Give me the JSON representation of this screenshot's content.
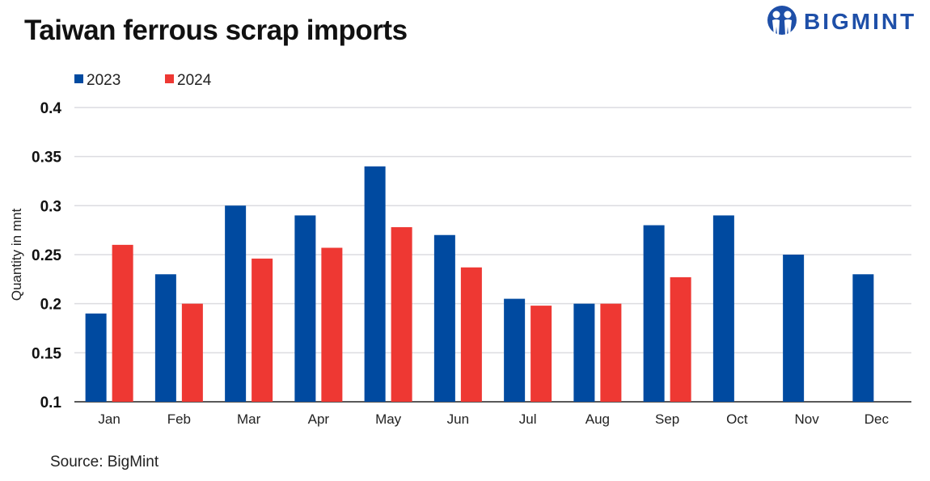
{
  "title": "Taiwan ferrous scrap imports",
  "logo": "BIGMINT",
  "source": "Source: BigMint",
  "chart_data": {
    "type": "bar",
    "title": "Taiwan ferrous scrap imports",
    "ylabel": "Quantity in mnt",
    "xlabel": "",
    "ylim": [
      0.1,
      0.4
    ],
    "yticks": [
      0.1,
      0.15,
      0.2,
      0.25,
      0.3,
      0.35,
      0.4
    ],
    "ytick_labels": [
      "0.1",
      "0.15",
      "0.2",
      "0.25",
      "0.3",
      "0.35",
      "0.4"
    ],
    "grid": true,
    "legend_position": "top-left",
    "categories": [
      "Jan",
      "Feb",
      "Mar",
      "Apr",
      "May",
      "Jun",
      "Jul",
      "Aug",
      "Sep",
      "Oct",
      "Nov",
      "Dec"
    ],
    "series": [
      {
        "name": "2023",
        "color": "#004aa0",
        "values": [
          0.19,
          0.23,
          0.3,
          0.29,
          0.34,
          0.27,
          0.205,
          0.2,
          0.28,
          0.29,
          0.25,
          0.23
        ]
      },
      {
        "name": "2024",
        "color": "#ee3833",
        "values": [
          0.26,
          0.2,
          0.246,
          0.257,
          0.278,
          0.237,
          0.198,
          0.2,
          0.227,
          null,
          null,
          null
        ]
      }
    ]
  }
}
